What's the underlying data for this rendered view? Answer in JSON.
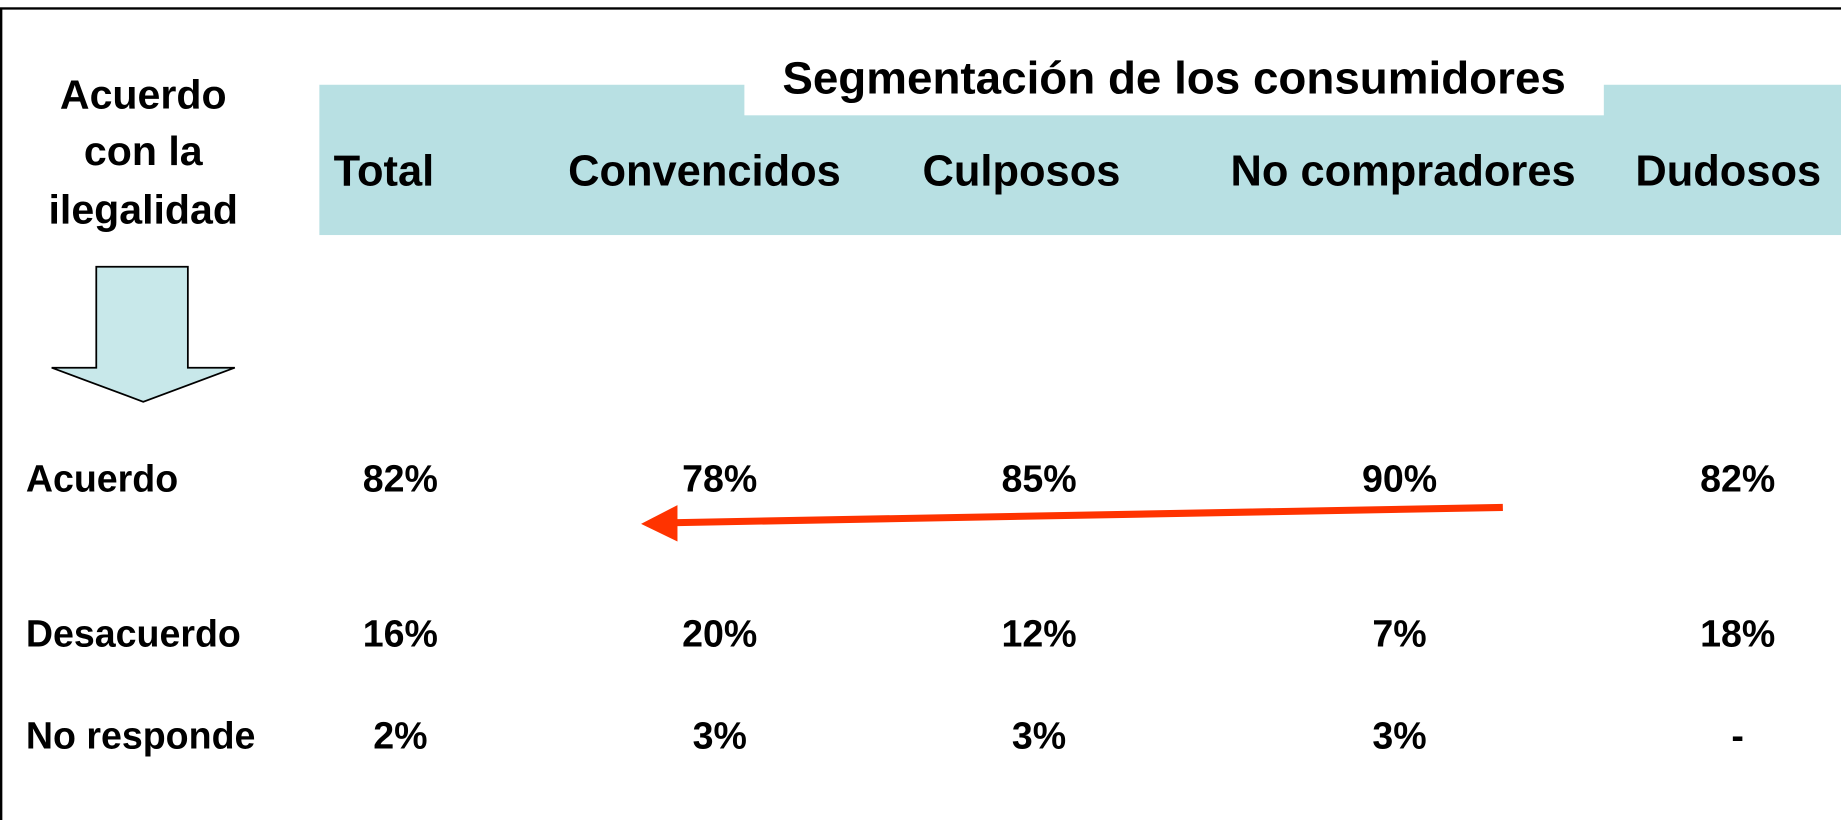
{
  "header": {
    "row_title": [
      "Acuerdo",
      "con la",
      "ilegalidad"
    ],
    "group_title": "Segmentación de los consumidores",
    "columns": [
      "Total",
      "Convencidos",
      "Culposos",
      "No compradores",
      "Dudosos"
    ]
  },
  "table": {
    "rows": [
      {
        "label": "Acuerdo",
        "cells": [
          "82%",
          "78%",
          "85%",
          "90%",
          "82%"
        ]
      },
      {
        "label": "Desacuerdo",
        "cells": [
          "16%",
          "20%",
          "12%",
          "7%",
          "18%"
        ]
      },
      {
        "label": "No responde",
        "cells": [
          "2%",
          "3%",
          "3%",
          "3%",
          "-"
        ]
      }
    ]
  }
}
